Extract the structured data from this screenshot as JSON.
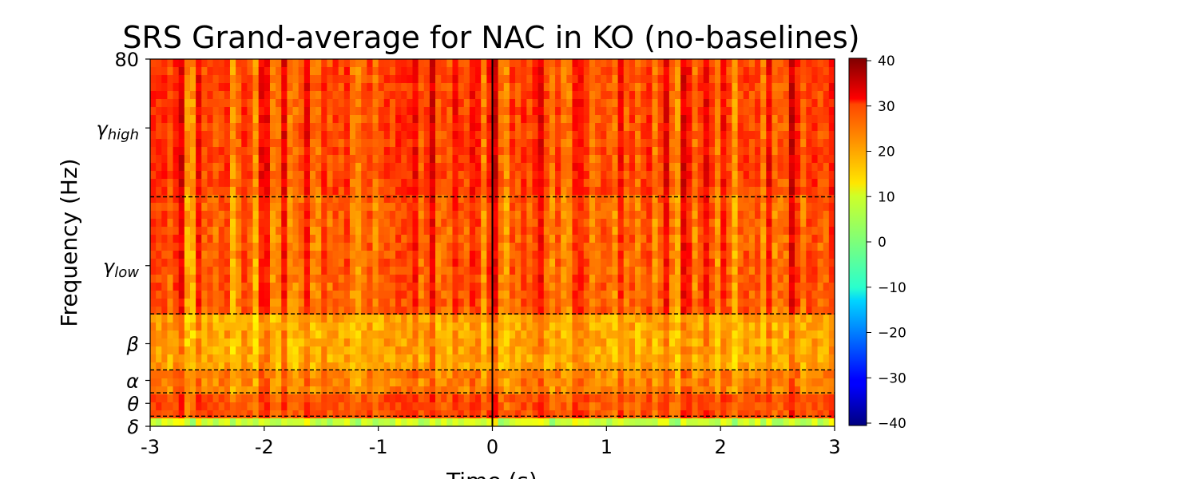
{
  "chart_data": {
    "type": "heatmap",
    "title": "SRS Grand-average for NAC in KO (no-baselines)",
    "xlabel": "Time (s)",
    "ylabel": "Frequency (Hz)",
    "xlim": [
      -3,
      3
    ],
    "ylim": [
      0,
      80
    ],
    "xticks": [
      {
        "value": -3,
        "label": "-3"
      },
      {
        "value": -2,
        "label": "-2"
      },
      {
        "value": -1,
        "label": "-1"
      },
      {
        "value": 0,
        "label": "0"
      },
      {
        "value": 1,
        "label": "1"
      },
      {
        "value": 2,
        "label": "2"
      },
      {
        "value": 3,
        "label": "3"
      }
    ],
    "yticks": [
      {
        "value": 80,
        "label": "80",
        "greek": "",
        "sub": ""
      },
      {
        "value": 65,
        "label": "",
        "greek": "γ",
        "sub": "high"
      },
      {
        "value": 35,
        "label": "",
        "greek": "γ",
        "sub": "low"
      },
      {
        "value": 18,
        "label": "",
        "greek": "β",
        "sub": ""
      },
      {
        "value": 10,
        "label": "",
        "greek": "α",
        "sub": ""
      },
      {
        "value": 5,
        "label": "",
        "greek": "θ",
        "sub": ""
      },
      {
        "value": 0,
        "label": "",
        "greek": "δ",
        "sub": ""
      }
    ],
    "band_boundaries_hz": [
      50,
      24.5,
      12.3,
      7.3,
      2.2
    ],
    "event_line_time": 0,
    "colormap": "jet",
    "colorbar": {
      "range": [
        -40,
        40
      ],
      "ticks": [
        "40",
        "30",
        "20",
        "10",
        "0",
        "−10",
        "−20",
        "−30",
        "−40"
      ]
    },
    "band_mean_values": [
      {
        "band": "δ",
        "value": 6
      },
      {
        "band": "θ",
        "value": 24
      },
      {
        "band": "α",
        "value": 20
      },
      {
        "band": "β",
        "value": 17
      },
      {
        "band": "γ_low",
        "value": 23
      },
      {
        "band": "γ_high",
        "value": 25
      }
    ],
    "grid": false,
    "legend": "none"
  }
}
